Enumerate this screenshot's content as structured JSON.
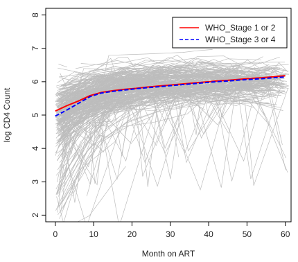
{
  "chart_data": {
    "type": "line",
    "title": "",
    "xlabel": "Month on ART",
    "ylabel": "log CD4 Count",
    "xlim": [
      -2.5,
      61.5
    ],
    "ylim": [
      1.8,
      8.2
    ],
    "x_ticks": [
      0,
      10,
      20,
      30,
      40,
      50,
      60
    ],
    "y_ticks": [
      2,
      3,
      4,
      5,
      6,
      7,
      8
    ],
    "grid": false,
    "legend_position": "top-right",
    "background_trajectories": {
      "color": "#bdbdbd",
      "description_count": 380
    },
    "series": [
      {
        "name": "WHO_Stage 1 or 2",
        "color": "#ff0000",
        "dash": "solid",
        "x": [
          0,
          3,
          6,
          9,
          12,
          15,
          18,
          21,
          24,
          27,
          30,
          33,
          36,
          39,
          42,
          45,
          48,
          51,
          54,
          57,
          60
        ],
        "values": [
          5.12,
          5.28,
          5.42,
          5.58,
          5.68,
          5.73,
          5.77,
          5.8,
          5.84,
          5.87,
          5.9,
          5.93,
          5.96,
          5.99,
          6.02,
          6.04,
          6.07,
          6.1,
          6.12,
          6.15,
          6.18
        ]
      },
      {
        "name": "WHO_Stage 3 or 4",
        "color": "#0000ff",
        "dash": "dashed",
        "x": [
          0,
          3,
          6,
          9,
          12,
          15,
          18,
          21,
          24,
          27,
          30,
          33,
          36,
          39,
          42,
          45,
          48,
          51,
          54,
          57,
          60
        ],
        "values": [
          4.97,
          5.15,
          5.35,
          5.55,
          5.66,
          5.71,
          5.75,
          5.79,
          5.82,
          5.85,
          5.88,
          5.91,
          5.94,
          5.97,
          6.0,
          6.02,
          6.05,
          6.07,
          6.09,
          6.12,
          6.14
        ]
      }
    ]
  }
}
